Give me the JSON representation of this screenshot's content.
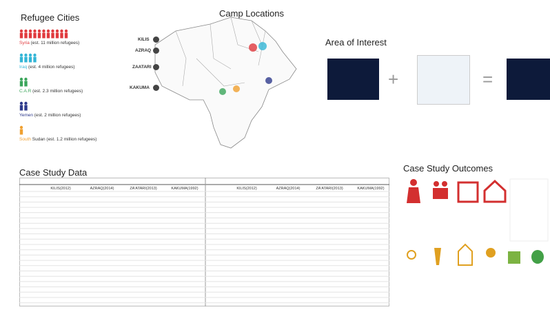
{
  "sections": {
    "refugees": {
      "title": "Refugee Cities",
      "entries": [
        {
          "label": "Syria (est. 11 million refugees)",
          "color": "#e03a3e"
        },
        {
          "label": "Iraq (est. 4 million refugees)",
          "color": "#33b5d6"
        },
        {
          "label": "C.A.R (est. 2.3 million refugees)",
          "color": "#3aa55a"
        },
        {
          "label": "Yemen (est. 2 million refugees)",
          "color": "#2e3a8c"
        },
        {
          "label": "South Sudan (est. 1.2 million refugees)",
          "color": "#f0a030"
        }
      ]
    },
    "map": {
      "title": "Camp Locations",
      "camps": [
        "KILIS",
        "AZRAQ",
        "ZAATARI",
        "KAKUMA"
      ]
    },
    "interest": {
      "title": "Area of Interest"
    },
    "table": {
      "title": "Case Study Data",
      "columns": [
        "KILIS(2012)",
        "AZRAQ(2014)",
        "ZA'ATARI(2013)",
        "KAKUMA(1992)"
      ]
    },
    "outcomes": {
      "title": "Case Study Outcomes"
    }
  }
}
